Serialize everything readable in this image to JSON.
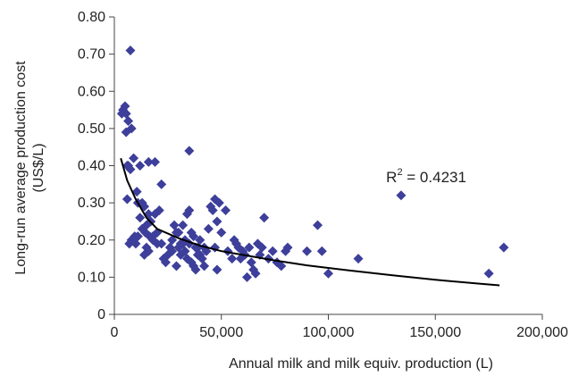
{
  "chart_data": {
    "type": "scatter",
    "xlabel": "Annual milk and milk equiv. production (L)",
    "ylabel_line1": "Long-run average production cost",
    "ylabel_line2": "(US$/L)",
    "xlim": [
      0,
      200000
    ],
    "ylim": [
      0,
      0.8
    ],
    "x_ticks": [
      0,
      50000,
      100000,
      150000,
      200000
    ],
    "x_tick_labels": [
      "0",
      "50,000",
      "100,000",
      "150,000",
      "200,000"
    ],
    "y_ticks": [
      0,
      0.1,
      0.2,
      0.3,
      0.4,
      0.5,
      0.6,
      0.7,
      0.8
    ],
    "y_tick_labels": [
      "0",
      "0.10",
      "0.20",
      "0.30",
      "0.40",
      "0.50",
      "0.60",
      "0.70",
      "0.80"
    ],
    "grid": false,
    "annotation": {
      "text_main": "R",
      "text_sup": "2",
      "text_tail": " = 0.4231",
      "x": 127000,
      "y": 0.355
    },
    "colors": {
      "points": "#3d3f9a",
      "trend": "#000000",
      "axis": "#444444"
    },
    "series": [
      {
        "type": "scatter",
        "points": [
          [
            7500,
            0.71
          ],
          [
            4000,
            0.55
          ],
          [
            5000,
            0.56
          ],
          [
            3500,
            0.54
          ],
          [
            5500,
            0.54
          ],
          [
            8000,
            0.5
          ],
          [
            6500,
            0.52
          ],
          [
            5500,
            0.49
          ],
          [
            6000,
            0.4
          ],
          [
            6500,
            0.4
          ],
          [
            9000,
            0.42
          ],
          [
            7500,
            0.39
          ],
          [
            12000,
            0.4
          ],
          [
            16000,
            0.41
          ],
          [
            19000,
            0.41
          ],
          [
            35000,
            0.44
          ],
          [
            10500,
            0.33
          ],
          [
            6000,
            0.31
          ],
          [
            22000,
            0.35
          ],
          [
            11000,
            0.3
          ],
          [
            13000,
            0.3
          ],
          [
            14000,
            0.29
          ],
          [
            16000,
            0.27
          ],
          [
            19000,
            0.27
          ],
          [
            21000,
            0.28
          ],
          [
            12000,
            0.26
          ],
          [
            15000,
            0.24
          ],
          [
            17000,
            0.25
          ],
          [
            20000,
            0.22
          ],
          [
            13000,
            0.23
          ],
          [
            14500,
            0.22
          ],
          [
            16500,
            0.21
          ],
          [
            18000,
            0.21
          ],
          [
            11000,
            0.21
          ],
          [
            10000,
            0.19
          ],
          [
            8000,
            0.2
          ],
          [
            7000,
            0.19
          ],
          [
            9500,
            0.21
          ],
          [
            15000,
            0.18
          ],
          [
            16000,
            0.17
          ],
          [
            14000,
            0.16
          ],
          [
            18000,
            0.2
          ],
          [
            20000,
            0.19
          ],
          [
            22000,
            0.19
          ],
          [
            23000,
            0.15
          ],
          [
            24000,
            0.14
          ],
          [
            26000,
            0.18
          ],
          [
            27000,
            0.2
          ],
          [
            28000,
            0.24
          ],
          [
            29000,
            0.22
          ],
          [
            30000,
            0.22
          ],
          [
            31000,
            0.19
          ],
          [
            32000,
            0.24
          ],
          [
            33000,
            0.2
          ],
          [
            34000,
            0.27
          ],
          [
            35000,
            0.28
          ],
          [
            36000,
            0.22
          ],
          [
            37000,
            0.21
          ],
          [
            38000,
            0.18
          ],
          [
            39000,
            0.16
          ],
          [
            29000,
            0.13
          ],
          [
            30000,
            0.18
          ],
          [
            31000,
            0.16
          ],
          [
            32000,
            0.19
          ],
          [
            33000,
            0.17
          ],
          [
            34000,
            0.15
          ],
          [
            35000,
            0.19
          ],
          [
            36000,
            0.14
          ],
          [
            37000,
            0.13
          ],
          [
            38000,
            0.12
          ],
          [
            39000,
            0.18
          ],
          [
            40000,
            0.16
          ],
          [
            41000,
            0.15
          ],
          [
            42000,
            0.13
          ],
          [
            43000,
            0.17
          ],
          [
            44000,
            0.23
          ],
          [
            45000,
            0.29
          ],
          [
            46000,
            0.28
          ],
          [
            47000,
            0.31
          ],
          [
            48000,
            0.25
          ],
          [
            49000,
            0.3
          ],
          [
            47000,
            0.18
          ],
          [
            48000,
            0.12
          ],
          [
            50000,
            0.22
          ],
          [
            52000,
            0.28
          ],
          [
            53000,
            0.17
          ],
          [
            55000,
            0.15
          ],
          [
            56000,
            0.2
          ],
          [
            57000,
            0.19
          ],
          [
            58000,
            0.18
          ],
          [
            59000,
            0.15
          ],
          [
            60000,
            0.17
          ],
          [
            61000,
            0.16
          ],
          [
            62000,
            0.1
          ],
          [
            63000,
            0.18
          ],
          [
            64000,
            0.14
          ],
          [
            65000,
            0.12
          ],
          [
            66000,
            0.11
          ],
          [
            67000,
            0.19
          ],
          [
            68000,
            0.16
          ],
          [
            69000,
            0.18
          ],
          [
            70000,
            0.26
          ],
          [
            72000,
            0.15
          ],
          [
            74000,
            0.17
          ],
          [
            76000,
            0.14
          ],
          [
            78000,
            0.13
          ],
          [
            80000,
            0.17
          ],
          [
            81000,
            0.18
          ],
          [
            90000,
            0.17
          ],
          [
            95000,
            0.24
          ],
          [
            97000,
            0.17
          ],
          [
            100000,
            0.11
          ],
          [
            114000,
            0.15
          ],
          [
            134000,
            0.32
          ],
          [
            175000,
            0.11
          ],
          [
            182000,
            0.18
          ],
          [
            40000,
            0.2
          ],
          [
            42000,
            0.18
          ],
          [
            25000,
            0.16
          ],
          [
            27000,
            0.17
          ]
        ]
      },
      {
        "type": "line",
        "name": "",
        "x": [
          3000,
          6000,
          10000,
          15000,
          20000,
          30000,
          40000,
          50000,
          60000,
          75000,
          90000,
          110000,
          130000,
          150000,
          170000,
          180000
        ],
        "y": [
          0.42,
          0.36,
          0.31,
          0.26,
          0.23,
          0.205,
          0.185,
          0.17,
          0.16,
          0.145,
          0.132,
          0.118,
          0.105,
          0.093,
          0.083,
          0.078
        ]
      }
    ]
  }
}
